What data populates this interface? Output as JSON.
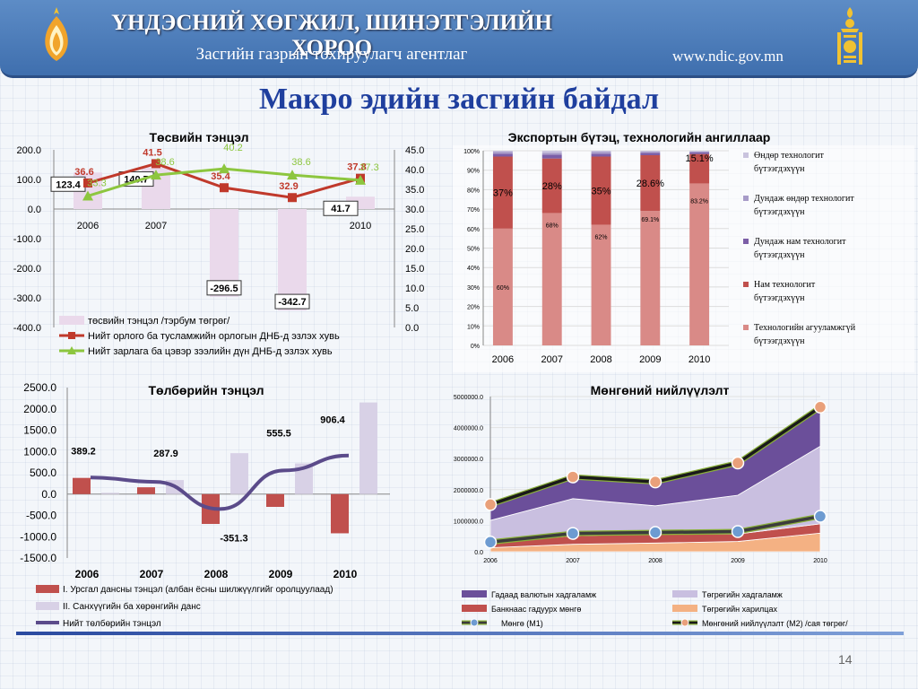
{
  "header": {
    "title": "ҮНДЭСНИЙ ХӨГЖИЛ, ШИНЭТГЭЛИЙН ХОРОО",
    "subtitle": "Засгийн газрын тохируулагч агентлаг",
    "url": "www.ndic.gov.mn"
  },
  "page_title": "Макро эдийн засгийн байдал",
  "page_number": "14",
  "colors": {
    "header": "#4a7bbd",
    "title": "#1f3f9e",
    "budget_bar": "#ead9eb",
    "red_line": "#c0392b",
    "green_line": "#8dc63f"
  },
  "chart_data": [
    {
      "id": "budget",
      "type": "bar",
      "title": "Төсвийн тэнцэл",
      "categories": [
        "2006",
        "2007",
        "2008",
        "2009",
        "2010"
      ],
      "left_axis": {
        "min": -400,
        "max": 200,
        "ticks": [
          "200.0",
          "100.0",
          "0.0",
          "-100.0",
          "-200.0",
          "-300.0",
          "-400.0"
        ]
      },
      "right_axis": {
        "min": 0,
        "max": 45,
        "ticks": [
          "45.0",
          "40.0",
          "35.0",
          "30.0",
          "25.0",
          "20.0",
          "15.0",
          "10.0",
          "5.0",
          "0.0"
        ]
      },
      "series": [
        {
          "name": "төсвийн тэнцэл /тэрбум төгрөг/",
          "axis": "left",
          "kind": "bar",
          "values": [
            123.4,
            140.7,
            -296.5,
            -342.7,
            41.7
          ],
          "labels": [
            "123.4",
            "140.7",
            "-296.5",
            "-342.7",
            "41.7"
          ],
          "color": "#ead9eb"
        },
        {
          "name": "Нийт орлого ба тусламжийн орлогын ДНБ-д эзлэх хувь",
          "axis": "right",
          "kind": "line",
          "values": [
            36.6,
            41.5,
            35.4,
            32.9,
            37.8
          ],
          "labels": [
            "36.6",
            "41.5",
            "35.4",
            "32.9",
            "37.8"
          ],
          "color": "#c0392b"
        },
        {
          "name": "Нийт зарлага ба цэвэр зээлийн дүн ДНБ-д эзлэх хувь",
          "axis": "right",
          "kind": "line",
          "values": [
            33.3,
            38.6,
            40.2,
            38.6,
            37.3
          ],
          "labels": [
            "33.3",
            "38.6",
            "40.2",
            "38.6",
            "37.3"
          ],
          "color": "#8dc63f"
        }
      ]
    },
    {
      "id": "export",
      "type": "bar",
      "stacked": true,
      "title": "Экспортын бүтэц, технологийн ангиллаар",
      "categories": [
        "2006",
        "2007",
        "2008",
        "2009",
        "2010"
      ],
      "yticks": [
        "100%",
        "90%",
        "80%",
        "70%",
        "60%",
        "50%",
        "40%",
        "30%",
        "20%",
        "10%",
        "0%"
      ],
      "series": [
        {
          "name": "Технологийн агууламжгүй бүтээгдэхүүн",
          "values": [
            60,
            68,
            62,
            69.1,
            83.2
          ],
          "labels": [
            "60%",
            "68%",
            "62%",
            "69.1%",
            "83.2%"
          ],
          "color": "#d98a87"
        },
        {
          "name": "Нам технологит бүтээгдэхүүн",
          "values": [
            37,
            28,
            35,
            28.6,
            15.1
          ],
          "labels": [
            "37%",
            "28%",
            "35%",
            "28.6%",
            "15.1%"
          ],
          "color": "#c0504d"
        },
        {
          "name": "Дундаж нам технологит бүтээгдэхүүн",
          "values": [
            1.5,
            2,
            1.5,
            1.2,
            0.8
          ],
          "labels": [
            "",
            "",
            "",
            "",
            ""
          ],
          "color": "#7b5ea7"
        },
        {
          "name": "Дундаж өндөр технологит бүтээгдэхүүн",
          "values": [
            1,
            1,
            1,
            0.6,
            0.5
          ],
          "labels": [
            "",
            "",
            "",
            "",
            ""
          ],
          "color": "#a79bc8"
        },
        {
          "name": "Өндөр технологит бүтээгдэхүүн",
          "values": [
            0.5,
            1,
            0.5,
            0.5,
            0.4
          ],
          "labels": [
            "",
            "",
            "",
            "",
            ""
          ],
          "color": "#c9c3de"
        }
      ]
    },
    {
      "id": "payments",
      "type": "bar",
      "title": "Төлбөрийн тэнцэл",
      "categories": [
        "2006",
        "2007",
        "2008",
        "2009",
        "2010"
      ],
      "y_axis": {
        "min": -1500,
        "max": 2500,
        "ticks": [
          "2500.0",
          "2000.0",
          "1500.0",
          "1000.0",
          "500.0",
          "0.0",
          "-500.0",
          "-1000.0",
          "-1500.0"
        ]
      },
      "series": [
        {
          "name": "I. Урсгал дансны тэнцэл (албан ёсны шилжүүлгийг оролцуулаад)",
          "kind": "bar",
          "values": [
            380,
            160,
            -700,
            -300,
            -920
          ],
          "color": "#c0504d"
        },
        {
          "name": "II. Санхүүгийн ба хөрөнгийн данс",
          "kind": "bar",
          "values": [
            30,
            330,
            960,
            720,
            2150
          ],
          "color": "#d8d1e6"
        },
        {
          "name": "Нийт төлбөрийн тэнцэл",
          "kind": "line",
          "values": [
            389.2,
            287.9,
            -351.3,
            555.5,
            906.4
          ],
          "color": "#5b4b8a"
        }
      ],
      "point_labels": [
        "389.2",
        "287.9",
        "-351.3",
        "555.5",
        "906.4"
      ]
    },
    {
      "id": "money",
      "type": "area",
      "stacked": true,
      "title": "Мөнгөний нийлүүлэлт",
      "categories": [
        "2006",
        "2007",
        "2008",
        "2009",
        "2010"
      ],
      "y_axis": {
        "min": 0,
        "max": 5000000,
        "ticks": [
          "5000000.0",
          "4000000.0",
          "3000000.0",
          "2000000.0",
          "1000000.0",
          "0.0"
        ]
      },
      "series": [
        {
          "name": "Төгрөгийн харилцах",
          "values": [
            130000,
            240000,
            280000,
            330000,
            600000
          ],
          "color": "#f4b183"
        },
        {
          "name": "Банкнаас гадуурх мөнгө",
          "values": [
            180000,
            270000,
            300000,
            240000,
            300000
          ],
          "color": "#c0504d"
        },
        {
          "name": "Төгрөгийн хадгаламж",
          "values": [
            700000,
            1200000,
            900000,
            1250000,
            2500000
          ],
          "color": "#c9bfe0"
        },
        {
          "name": "Гадаад валютын хадгаламж",
          "values": [
            500000,
            700000,
            700000,
            1000000,
            1250000
          ],
          "color": "#6b4f9a"
        },
        {
          "name": "Мөнгө (М1)",
          "kind": "line",
          "values": [
            310000,
            590000,
            620000,
            650000,
            1140000
          ],
          "color": "#3c3c3c"
        },
        {
          "name": "Мөнгөний нийлүүлэлт (М2) /сая төгрөг/",
          "kind": "line",
          "values": [
            1520000,
            2410000,
            2250000,
            2860000,
            4660000
          ],
          "color": "#1a1a1a"
        }
      ]
    }
  ]
}
